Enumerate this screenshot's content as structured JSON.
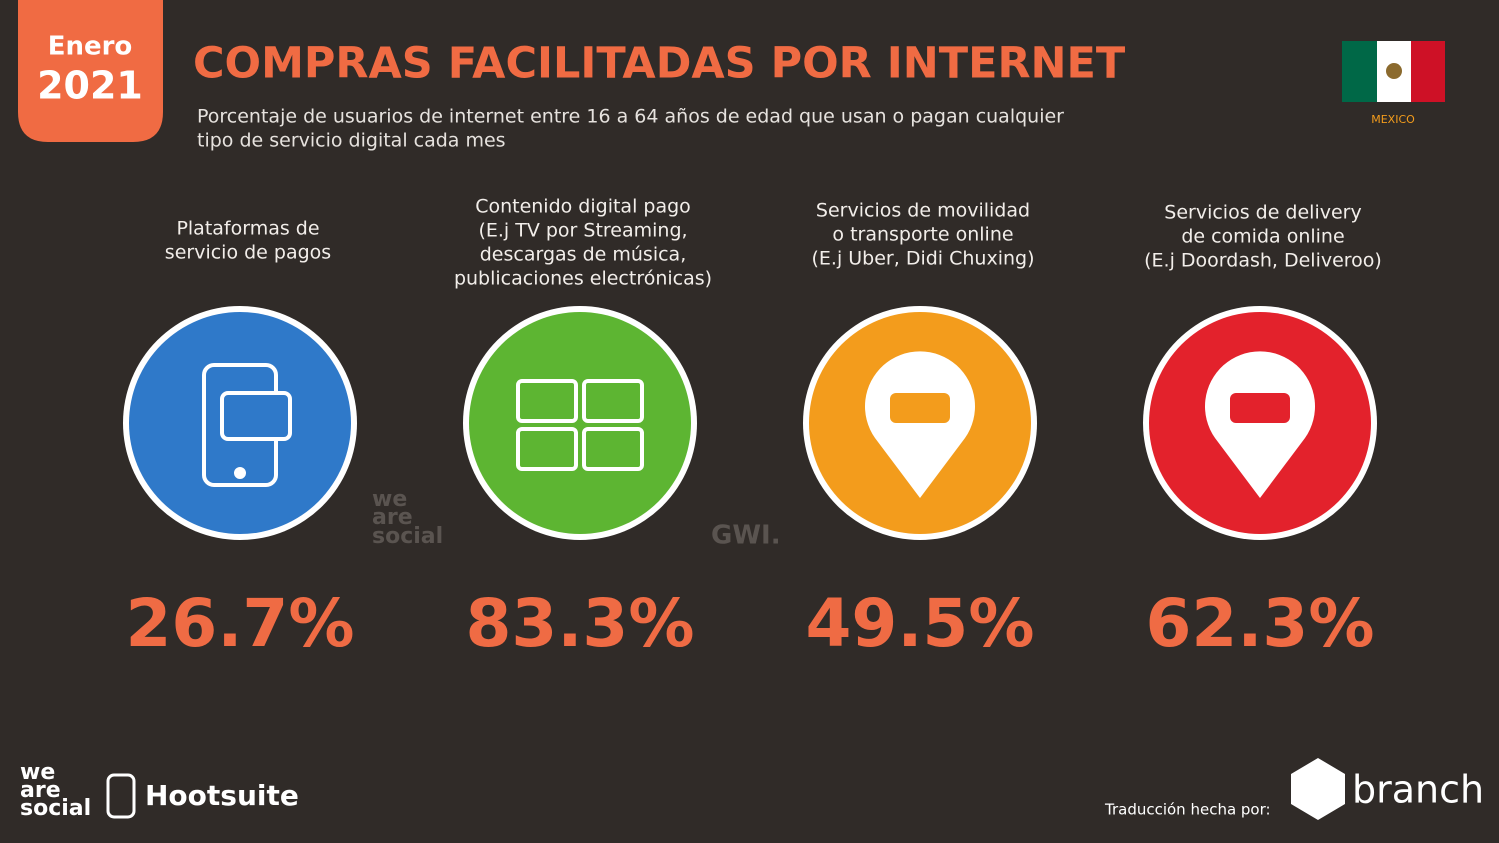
{
  "badge": {
    "month": "Enero",
    "year": "2021"
  },
  "header": {
    "title": "COMPRAS FACILITADAS POR INTERNET",
    "subtitle": [
      "Porcentaje de usuarios de internet entre 16 a 64 años de edad que usan o pagan cualquier",
      "tipo de servicio digital cada mes"
    ],
    "country": "MEXICO"
  },
  "items": [
    {
      "label": [
        "Plataformas de",
        "servicio de pagos"
      ],
      "value": "26.7%",
      "color": "#2f79c9"
    },
    {
      "label": [
        "Contenido digital pago",
        "(E.j TV por Streaming,",
        "descargas de música,",
        "publicaciones electrónicas)"
      ],
      "value": "83.3%",
      "color": "#5db532"
    },
    {
      "label": [
        "Servicios de movilidad",
        "o transporte online",
        "(E.j Uber, Didi Chuxing)"
      ],
      "value": "49.5%",
      "color": "#f39c1c"
    },
    {
      "label": [
        "Servicios de delivery",
        "de comida online",
        "(E.j Doordash, Deliveroo)"
      ],
      "value": "62.3%",
      "color": "#e3222c"
    }
  ],
  "watermarks": [
    "we",
    "are",
    "social",
    "GWI."
  ],
  "footer": {
    "logo1": [
      "we",
      "are",
      "social"
    ],
    "logo2": "Hootsuite",
    "credit": "Traducción hecha por:",
    "brand": "branch"
  }
}
